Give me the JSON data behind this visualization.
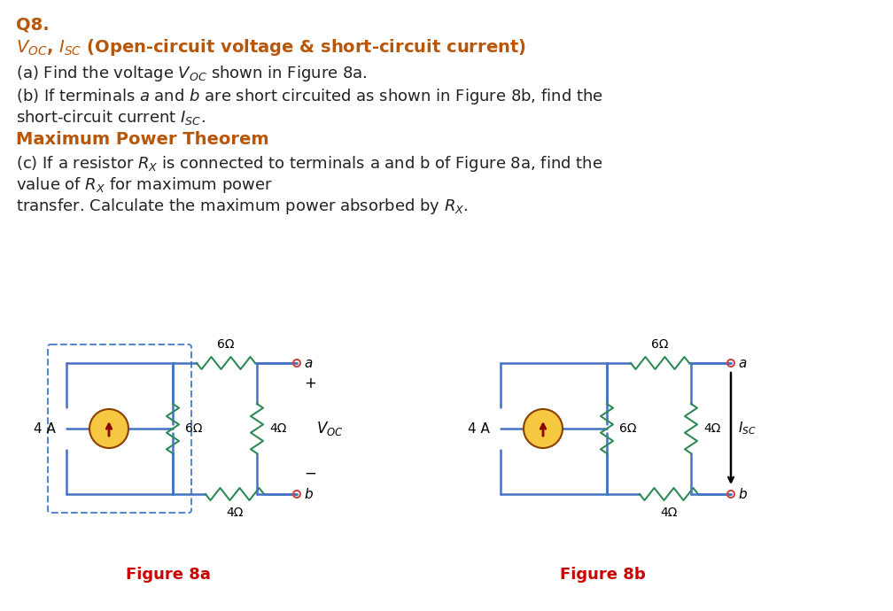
{
  "title_q": "Q8.",
  "title_voc_isc": "V_OC, I_SC (Open-circuit voltage & short-circuit current)",
  "line_a": "(a) Find the voltage V_OC shown in Figure 8a.",
  "line_b": "(b) If terminals a and b are short circuited as shown in Figure 8b, find the",
  "line_b2": "short-circuit current I_SC.",
  "title_mpt": "Maximum Power Theorem",
  "line_c": "(c) If a resistor R_X is connected to terminals a and b of Figure 8a, find the",
  "line_c2": "value of R_X for maximum power",
  "line_c3": "transfer. Calculate the maximum power absorbed by R_X.",
  "fig_a_label": "Figure 8a",
  "fig_b_label": "Figure 8b",
  "orange_color": "#B8560A",
  "red_color": "#CC0000",
  "circuit_line_color": "#4472C4",
  "resistor_color": "#2E8B57",
  "current_source_fill": "#F5C842",
  "current_source_arrow": "#8B0000",
  "terminal_color": "#CC4444",
  "background": "#FFFFFF"
}
